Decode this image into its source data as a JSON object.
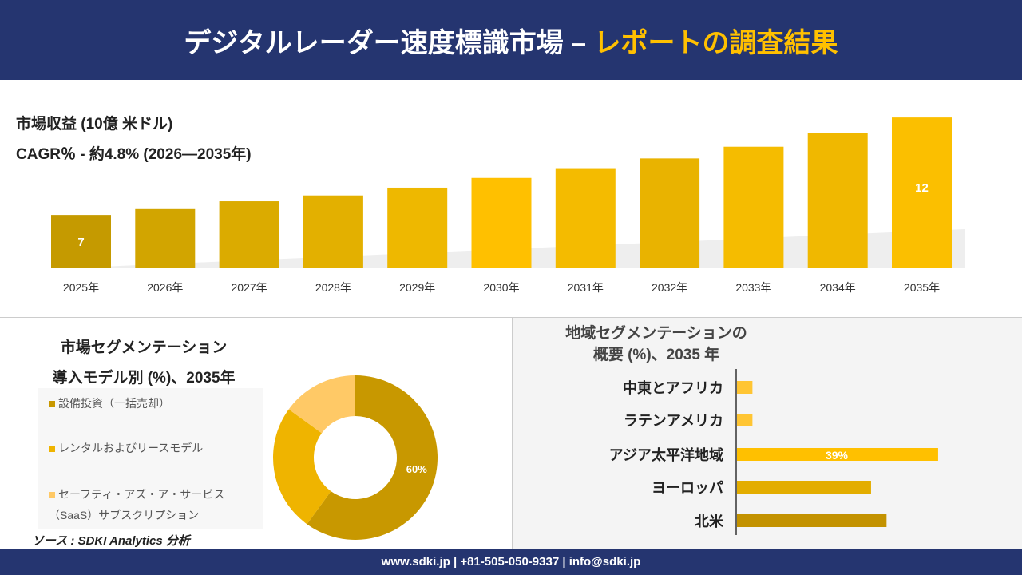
{
  "header": {
    "title_main": "デジタルレーダー速度標識市場 –",
    "title_accent": "レポートの調査結果"
  },
  "revenue_title": "市場収益 (10億 米ドル)",
  "cagr_text": "CAGR％ - 約4.8% (2026—2035年)",
  "segment": {
    "title1": "市場セグメンテーション",
    "title2": "導入モデル別 (%)、2035年"
  },
  "region_title": {
    "line1": "地域セグメンテーションの",
    "line2": "概要 (%)、2035 年"
  },
  "source": "ソース : SDKI Analytics 分析",
  "footer": "www.sdki.jp | +81-505-050-9337 | info@sdki.jp",
  "chart_data": [
    {
      "type": "bar",
      "title": "市場収益 (10億 米ドル)",
      "categories": [
        "2025年",
        "2026年",
        "2027年",
        "2028年",
        "2029年",
        "2030年",
        "2031年",
        "2032年",
        "2033年",
        "2034年",
        "2035年"
      ],
      "values": [
        7,
        7.3,
        7.7,
        8.0,
        8.4,
        8.9,
        9.4,
        9.9,
        10.5,
        11.2,
        12
      ],
      "data_labels": {
        "0": "7",
        "10": "12"
      },
      "colors": [
        "#c59a00",
        "#d2a500",
        "#dbab00",
        "#e3b000",
        "#eeb800",
        "#ffc000",
        "#f4bb00",
        "#e9b300",
        "#f5bc00",
        "#f0b800",
        "#fbbf00"
      ],
      "grid": false
    },
    {
      "type": "pie",
      "subtype": "donut",
      "title": "導入モデル別 (%)、2035年",
      "series": [
        {
          "name": "設備投資（一括売却）",
          "value": 60,
          "color": "#c89800",
          "label": "60%"
        },
        {
          "name": "レンタルおよびリースモデル",
          "value": 25,
          "color": "#efb400",
          "label": ""
        },
        {
          "name": "セーフティ・アズ・ア・サービス（SaaS）サブスクリプション",
          "value": 15,
          "color": "#ffc966",
          "label": ""
        }
      ],
      "legend_placement": "left"
    },
    {
      "type": "bar",
      "orientation": "horizontal",
      "title": "地域セグメンテーションの概要 (%)、2035 年",
      "categories": [
        "中東とアフリカ",
        "ラテンアメリカ",
        "アジア太平洋地域",
        "ヨーロッパ",
        "北米"
      ],
      "values": [
        3,
        3,
        39,
        26,
        29
      ],
      "data_labels": {
        "2": "39%"
      },
      "colors": [
        "#ffc533",
        "#ffc533",
        "#ffc000",
        "#e3ad00",
        "#c39200"
      ]
    }
  ]
}
